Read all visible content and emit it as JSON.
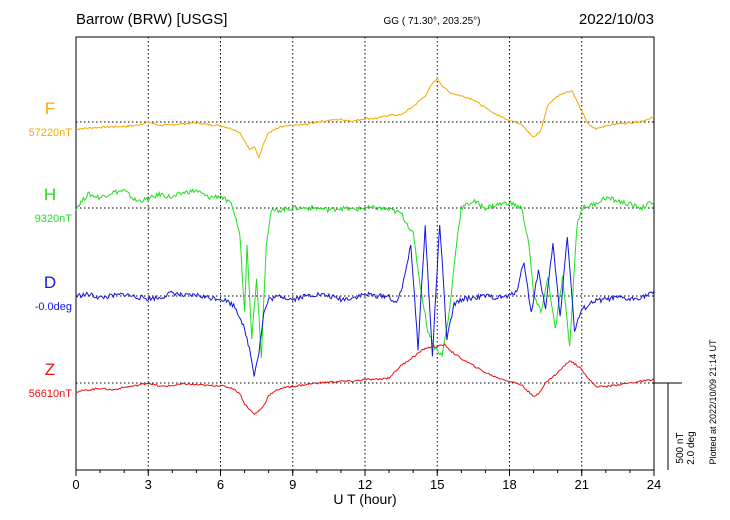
{
  "header": {
    "station": "Barrow (BRW)  [USGS]",
    "coords": "GG ( 71.30°, 203.25°)",
    "date": "2022/10/03"
  },
  "side_note": "Plotted at 2022/10/09 21:14 UT",
  "scale_bar": {
    "line1": "500 nT",
    "line2": "2.0 deg"
  },
  "chart_data": {
    "type": "line",
    "xlabel": "U T (hour)",
    "xlim": [
      0,
      24
    ],
    "xticks": [
      "0",
      "3",
      "6",
      "9",
      "12",
      "15",
      "18",
      "21",
      "24"
    ],
    "grid": true,
    "scale": {
      "nT_per_bar": 500,
      "deg_per_bar": 2.0
    },
    "series": [
      {
        "name": "F",
        "baseline_label": "57220nT",
        "color": "#f5a800",
        "x": [
          0,
          0.5,
          1,
          1.5,
          2,
          2.5,
          3,
          3.5,
          4,
          4.5,
          5,
          5.5,
          6,
          6.5,
          6.8,
          7,
          7.2,
          7.4,
          7.6,
          7.8,
          8,
          8.5,
          9,
          9.5,
          10,
          10.5,
          11,
          11.5,
          12,
          12.5,
          13,
          13.5,
          14,
          14.5,
          14.8,
          15,
          15.2,
          15.5,
          16,
          16.5,
          17,
          17.5,
          18,
          18.5,
          18.8,
          19,
          19.3,
          19.6,
          20,
          20.3,
          20.6,
          21,
          21.3,
          21.6,
          22,
          22.5,
          23,
          23.5,
          24
        ],
        "y": [
          -40,
          -35,
          -30,
          -28,
          -25,
          -20,
          0,
          -20,
          -15,
          -10,
          -5,
          -15,
          -20,
          -40,
          -60,
          -110,
          -160,
          -140,
          -200,
          -120,
          -60,
          -30,
          -20,
          -15,
          0,
          10,
          15,
          5,
          20,
          20,
          40,
          40,
          90,
          150,
          220,
          250,
          210,
          170,
          150,
          130,
          80,
          40,
          10,
          -10,
          -60,
          -90,
          -50,
          100,
          150,
          170,
          180,
          60,
          -20,
          -40,
          -20,
          -10,
          -5,
          5,
          30
        ]
      },
      {
        "name": "H",
        "baseline_label": "9320nT",
        "color": "#22dd22",
        "x": [
          0,
          0.5,
          1,
          1.5,
          2,
          2.5,
          3,
          3.5,
          4,
          4.5,
          5,
          5.5,
          6,
          6.5,
          6.8,
          7,
          7.1,
          7.3,
          7.5,
          7.7,
          7.9,
          8.1,
          8.5,
          9,
          9.5,
          10,
          10.5,
          11,
          11.5,
          12,
          12.5,
          13,
          13.5,
          14,
          14.3,
          14.6,
          14.9,
          15.2,
          15.5,
          15.8,
          16,
          16.5,
          17,
          17.5,
          18,
          18.5,
          18.8,
          19,
          19.3,
          19.6,
          19.9,
          20.2,
          20.5,
          20.8,
          21,
          21.5,
          22,
          22.5,
          23,
          23.5,
          24
        ],
        "y": [
          0,
          80,
          60,
          90,
          100,
          40,
          50,
          80,
          60,
          90,
          100,
          60,
          70,
          10,
          -150,
          -600,
          -200,
          -750,
          -400,
          -850,
          -200,
          -20,
          -10,
          0,
          0,
          0,
          -10,
          0,
          -10,
          0,
          0,
          -10,
          -30,
          -150,
          -450,
          -700,
          -800,
          -850,
          -600,
          -200,
          0,
          40,
          0,
          20,
          30,
          0,
          -200,
          -500,
          -600,
          -400,
          -700,
          -400,
          -800,
          -100,
          0,
          20,
          60,
          40,
          20,
          0,
          40
        ]
      },
      {
        "name": "D",
        "baseline_label": "-0.0deg",
        "color": "#1515dd",
        "x": [
          0,
          0.5,
          1,
          1.5,
          2,
          2.5,
          3,
          3.5,
          4,
          4.5,
          5,
          5.5,
          6,
          6.3,
          6.6,
          6.9,
          7.2,
          7.4,
          7.6,
          7.8,
          8,
          8.5,
          9,
          9.5,
          10,
          10.5,
          11,
          11.5,
          12,
          12.5,
          13,
          13.3,
          13.6,
          13.9,
          14.2,
          14.5,
          14.8,
          15.1,
          15.4,
          15.7,
          16,
          16.5,
          17,
          17.5,
          18,
          18.3,
          18.6,
          18.9,
          19.2,
          19.5,
          19.8,
          20.1,
          20.4,
          20.7,
          21,
          21.5,
          22,
          22.5,
          23,
          23.5,
          24
        ],
        "y": [
          0,
          10,
          -10,
          0,
          10,
          -5,
          -15,
          -10,
          20,
          0,
          5,
          -10,
          -15,
          -30,
          -60,
          -150,
          -300,
          -450,
          -320,
          -100,
          -20,
          0,
          -20,
          0,
          10,
          0,
          -20,
          -10,
          10,
          0,
          0,
          -50,
          80,
          300,
          -300,
          400,
          -350,
          420,
          -250,
          -50,
          -20,
          -10,
          0,
          -10,
          0,
          30,
          200,
          -100,
          150,
          -80,
          300,
          -120,
          350,
          -200,
          -80,
          -30,
          -20,
          -10,
          -20,
          -5,
          20
        ]
      },
      {
        "name": "Z",
        "baseline_label": "56610nT",
        "color": "#ee1111",
        "x": [
          0,
          0.5,
          1,
          1.5,
          2,
          2.5,
          3,
          3.5,
          4,
          4.5,
          5,
          5.5,
          6,
          6.5,
          6.8,
          7,
          7.2,
          7.4,
          7.6,
          7.8,
          8,
          8.5,
          9,
          9.5,
          10,
          10.5,
          11,
          11.5,
          12,
          12.5,
          13,
          13.5,
          14,
          14.5,
          15,
          15.3,
          15.6,
          16,
          16.5,
          17,
          17.5,
          18,
          18.5,
          19,
          19.2,
          19.5,
          20,
          20.5,
          21,
          21.3,
          21.6,
          22,
          22.5,
          23,
          23.5,
          24
        ],
        "y": [
          -50,
          -40,
          -30,
          -40,
          -25,
          -15,
          0,
          -20,
          -15,
          -5,
          -10,
          -15,
          -15,
          -30,
          -60,
          -120,
          -150,
          -180,
          -160,
          -130,
          -70,
          -30,
          -20,
          -10,
          0,
          5,
          10,
          10,
          20,
          20,
          30,
          100,
          150,
          200,
          210,
          220,
          180,
          140,
          100,
          60,
          30,
          10,
          -10,
          -80,
          -60,
          0,
          60,
          130,
          80,
          20,
          -20,
          -20,
          -10,
          0,
          10,
          20
        ]
      }
    ]
  }
}
